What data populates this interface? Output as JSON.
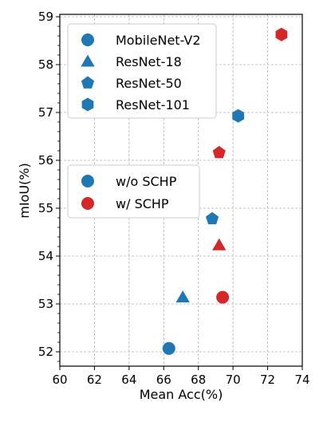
{
  "chart_data": {
    "type": "scatter",
    "title": "",
    "xlabel": "Mean Acc(%)",
    "ylabel": "mIoU(%)",
    "xlim": [
      60,
      74
    ],
    "ylim": [
      51.7,
      59.05
    ],
    "xticks": [
      60,
      62,
      64,
      66,
      68,
      70,
      72,
      74
    ],
    "yticks": [
      52,
      53,
      54,
      55,
      56,
      57,
      58,
      59
    ],
    "grid": true,
    "colors": {
      "without_schp": "#1f77b4",
      "with_schp": "#d62728"
    },
    "points": [
      {
        "model": "MobileNet-V2",
        "variant": "w/o SCHP",
        "marker": "circle",
        "x": 66.3,
        "y": 52.07
      },
      {
        "model": "MobileNet-V2",
        "variant": "w/ SCHP",
        "marker": "circle",
        "x": 69.4,
        "y": 53.14
      },
      {
        "model": "ResNet-18",
        "variant": "w/o SCHP",
        "marker": "triangle",
        "x": 67.1,
        "y": 53.14
      },
      {
        "model": "ResNet-18",
        "variant": "w/ SCHP",
        "marker": "triangle",
        "x": 69.2,
        "y": 54.23
      },
      {
        "model": "ResNet-50",
        "variant": "w/o SCHP",
        "marker": "pentagon",
        "x": 68.8,
        "y": 54.78
      },
      {
        "model": "ResNet-50",
        "variant": "w/ SCHP",
        "marker": "pentagon",
        "x": 69.2,
        "y": 56.16
      },
      {
        "model": "ResNet-101",
        "variant": "w/o SCHP",
        "marker": "hexagon",
        "x": 70.3,
        "y": 56.93
      },
      {
        "model": "ResNet-101",
        "variant": "w/ SCHP",
        "marker": "hexagon",
        "x": 72.8,
        "y": 58.63
      }
    ],
    "legends": [
      {
        "placement": "upper-left",
        "entries": [
          {
            "label": "MobileNet-V2",
            "marker": "circle",
            "color": "#1f77b4"
          },
          {
            "label": "ResNet-18",
            "marker": "triangle",
            "color": "#1f77b4"
          },
          {
            "label": "ResNet-50",
            "marker": "pentagon",
            "color": "#1f77b4"
          },
          {
            "label": "ResNet-101",
            "marker": "hexagon",
            "color": "#1f77b4"
          }
        ]
      },
      {
        "placement": "center-left",
        "entries": [
          {
            "label": "w/o SCHP",
            "marker": "circle",
            "color": "#1f77b4"
          },
          {
            "label": "w/ SCHP",
            "marker": "circle",
            "color": "#d62728"
          }
        ]
      }
    ]
  }
}
